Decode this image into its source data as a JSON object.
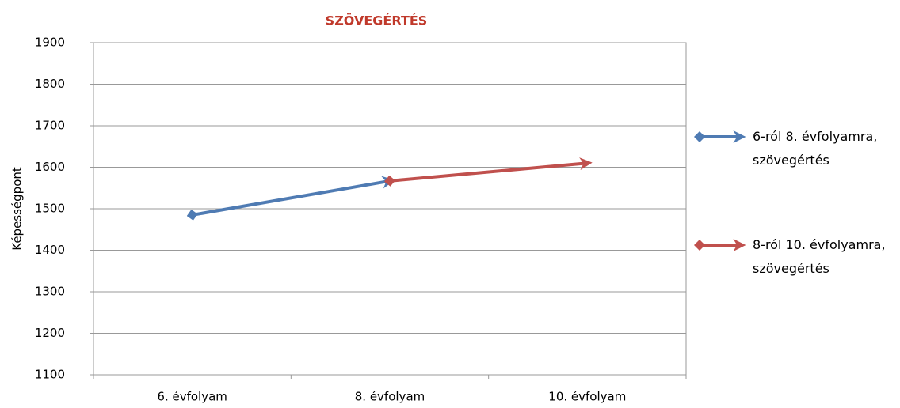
{
  "chart_data": {
    "type": "line",
    "title": "SZÖVEGÉRTÉS",
    "y_label": "Képességpont",
    "categories": [
      "6. évfolyam",
      "8. évfolyam",
      "10. évfolyam"
    ],
    "series": [
      {
        "name": "6-ról 8. évfolyamra, szövegértés",
        "color": "#4f7bb3",
        "values": [
          1485,
          1567,
          null
        ]
      },
      {
        "name": "8-ról 10. évfolyamra, szövegértés",
        "color": "#c0504d",
        "values": [
          null,
          1567,
          1610
        ]
      }
    ],
    "ylim": [
      1100,
      1900
    ],
    "yticks": [
      1100,
      1200,
      1300,
      1400,
      1500,
      1600,
      1700,
      1800,
      1900
    ],
    "grid": true,
    "legend": "right",
    "title_color": "#c0392b"
  }
}
